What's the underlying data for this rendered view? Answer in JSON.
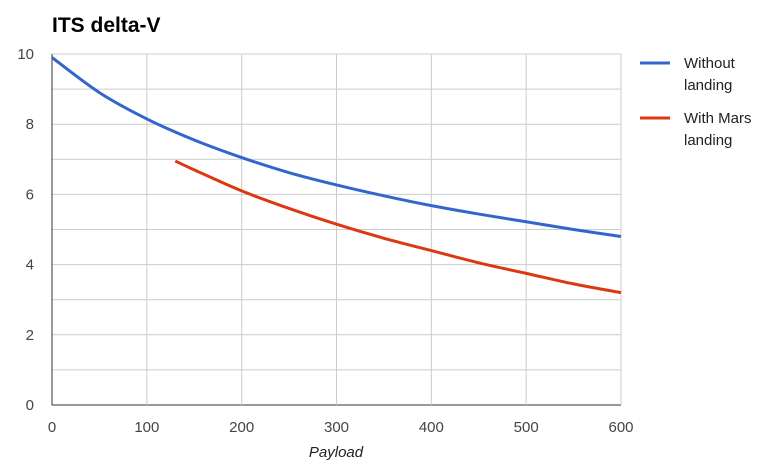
{
  "chart_data": {
    "type": "line",
    "title": "ITS delta-V",
    "xlabel": "Payload",
    "ylabel": "",
    "xlim": [
      0,
      600
    ],
    "ylim": [
      0,
      10
    ],
    "x_ticks": [
      0,
      100,
      200,
      300,
      400,
      500,
      600
    ],
    "y_ticks": [
      0,
      2,
      4,
      6,
      8,
      10
    ],
    "grid": true,
    "legend_position": "right",
    "series": [
      {
        "name": "Without landing",
        "color": "#3366cc",
        "x": [
          0,
          50,
          100,
          150,
          200,
          250,
          300,
          350,
          400,
          450,
          500,
          550,
          600
        ],
        "y": [
          9.9,
          8.9,
          8.15,
          7.55,
          7.05,
          6.62,
          6.27,
          5.96,
          5.68,
          5.44,
          5.22,
          5.0,
          4.8
        ]
      },
      {
        "name": "With Mars landing",
        "legend_lines": [
          "With Mars",
          "landing"
        ],
        "color": "#dc3912",
        "x": [
          130,
          150,
          200,
          250,
          300,
          350,
          400,
          450,
          500,
          550,
          600
        ],
        "y": [
          6.95,
          6.7,
          6.1,
          5.6,
          5.15,
          4.75,
          4.4,
          4.05,
          3.75,
          3.45,
          3.2
        ]
      }
    ]
  }
}
